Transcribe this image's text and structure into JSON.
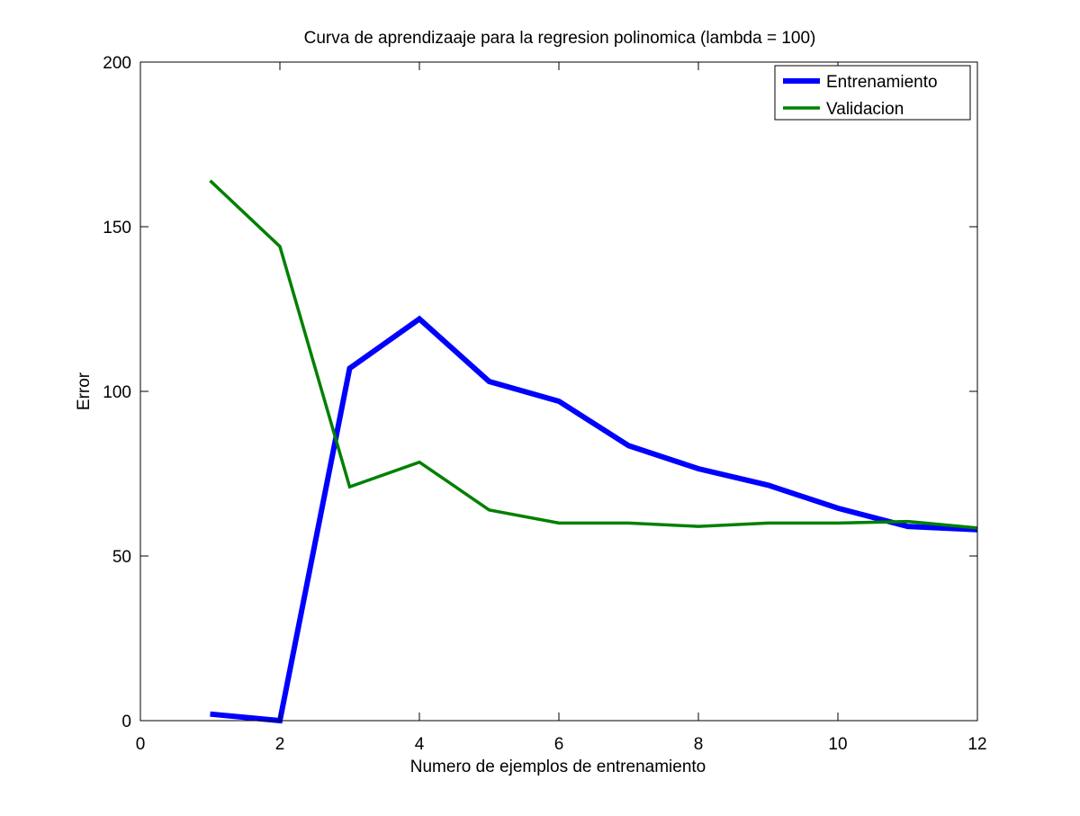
{
  "chart_data": {
    "type": "line",
    "title": "Curva de aprendizaaje para la regresion polinomica (lambda = 100)",
    "xlabel": "Numero de ejemplos de entrenamiento",
    "ylabel": "Error",
    "xlim": [
      0,
      12
    ],
    "ylim": [
      0,
      200
    ],
    "xticks": [
      0,
      2,
      4,
      6,
      8,
      10,
      12
    ],
    "yticks": [
      0,
      50,
      100,
      150,
      200
    ],
    "grid": false,
    "legend_position": "top-right",
    "x": [
      1,
      2,
      3,
      4,
      5,
      6,
      7,
      8,
      9,
      10,
      11,
      12
    ],
    "series": [
      {
        "name": "Entrenamiento",
        "color": "#0000ff",
        "values": [
          2,
          0,
          107,
          122,
          103,
          97,
          83.5,
          76.5,
          71.5,
          64.5,
          59,
          58
        ]
      },
      {
        "name": "Validacion",
        "color": "#008000",
        "values": [
          164,
          144,
          71,
          78.5,
          64,
          60,
          60,
          59,
          60,
          60,
          60.5,
          58.5
        ]
      }
    ]
  }
}
